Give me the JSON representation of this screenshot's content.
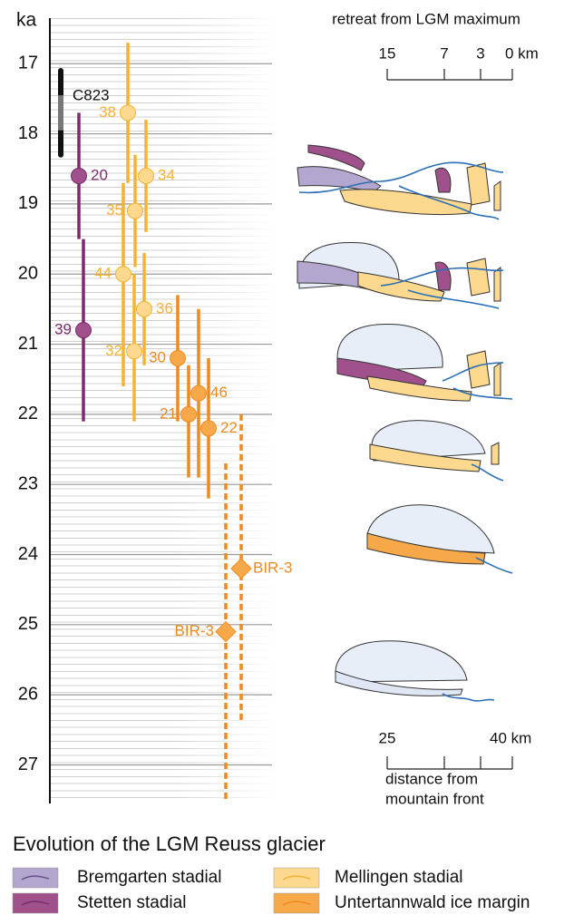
{
  "chart_data": {
    "type": "errorbar",
    "ylabel": "ka",
    "ylim": [
      16.35,
      27.55
    ],
    "yticks": [
      17,
      18,
      19,
      20,
      21,
      22,
      23,
      24,
      25,
      26,
      27
    ],
    "inverted": true,
    "grid": true,
    "reference": {
      "label": "C823",
      "color": "#111111",
      "inner_color": "#777777",
      "low": 17.1,
      "high": 18.3,
      "inner_low": 17.45,
      "inner_high": 17.95
    },
    "series": [
      {
        "name": "Bremgarten stadial",
        "color": "#b3a6cf",
        "line_color": "#6d4f8f",
        "points": []
      },
      {
        "name": "Stetten stadial",
        "color": "#a0508a",
        "line_color": "#7b2b6e",
        "points": [
          {
            "label": "20",
            "value": 18.6,
            "low": 17.7,
            "high": 19.5
          },
          {
            "label": "39",
            "value": 20.8,
            "low": 19.5,
            "high": 22.1
          }
        ]
      },
      {
        "name": "Mellingen stadial",
        "color": "#fcd98e",
        "line_color": "#f5b335",
        "points": [
          {
            "label": "38",
            "value": 17.7,
            "low": 16.7,
            "high": 18.7
          },
          {
            "label": "34",
            "value": 18.6,
            "low": 17.8,
            "high": 19.4
          },
          {
            "label": "35",
            "value": 19.1,
            "low": 18.3,
            "high": 19.9
          },
          {
            "label": "44",
            "value": 20.0,
            "low": 18.7,
            "high": 21.6
          },
          {
            "label": "36",
            "value": 20.5,
            "low": 19.7,
            "high": 21.3
          },
          {
            "label": "32",
            "value": 21.1,
            "low": 20.0,
            "high": 22.1
          }
        ]
      },
      {
        "name": "Untertannwald ice margin",
        "color": "#f7a94a",
        "line_color": "#ef8a1f",
        "points": [
          {
            "label": "30",
            "value": 21.2,
            "low": 20.3,
            "high": 22.1
          },
          {
            "label": "46",
            "value": 21.7,
            "low": 20.5,
            "high": 22.9
          },
          {
            "label": "21",
            "value": 22.0,
            "low": 21.3,
            "high": 22.9
          },
          {
            "label": "22",
            "value": 22.2,
            "low": 21.2,
            "high": 23.2
          },
          {
            "label": "BIR-3",
            "value": 24.2,
            "low": 22.0,
            "high": 26.4,
            "marker": "diamond",
            "dashed": true
          },
          {
            "label": "BIR-3",
            "value": 25.1,
            "low": 22.7,
            "high": 27.5,
            "marker": "diamond",
            "dashed": true
          }
        ]
      }
    ],
    "scale_top": {
      "title": "retreat from LGM maximum",
      "labels": [
        "15",
        "7",
        "3",
        "0 km"
      ]
    },
    "scale_bottom": {
      "labels": [
        "25",
        "40 km"
      ],
      "title": [
        "distance from",
        "mountain front"
      ]
    },
    "legend_title": "Evolution of the LGM Reuss glacier"
  }
}
